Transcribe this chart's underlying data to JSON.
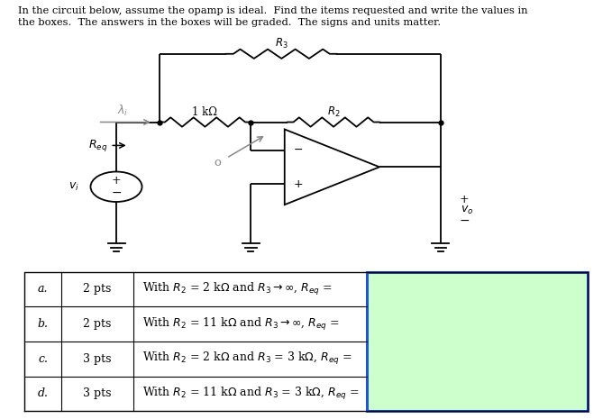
{
  "background_color": "#ffffff",
  "text_color": "#000000",
  "title_lines": [
    "In the circuit below, assume the opamp is ideal.  Find the items requested and write the values in",
    "the boxes.  The answers in the boxes will be graded.  The signs and units matter."
  ],
  "answer_box_color": "#ccffcc",
  "answer_box_border": "#2255cc",
  "table_labels": [
    "a.",
    "b.",
    "c.",
    "d."
  ],
  "table_pts": [
    "2 pts",
    "2 pts",
    "3 pts",
    "3 pts"
  ],
  "table_texts": [
    "With $R_2$ = 2 k$\\Omega$ and $R_3 \\rightarrow \\infty$, $R_{eq}$ =",
    "With $R_2$ = 11 k$\\Omega$ and $R_3 \\rightarrow \\infty$, $R_{eq}$ =",
    "With $R_2$ = 2 k$\\Omega$ and $R_3$ = 3 k$\\Omega$, $R_{eq}$ =",
    "With $R_2$ = 11 k$\\Omega$ and $R_3$ = 3 k$\\Omega$, $R_{eq}$ ="
  ]
}
